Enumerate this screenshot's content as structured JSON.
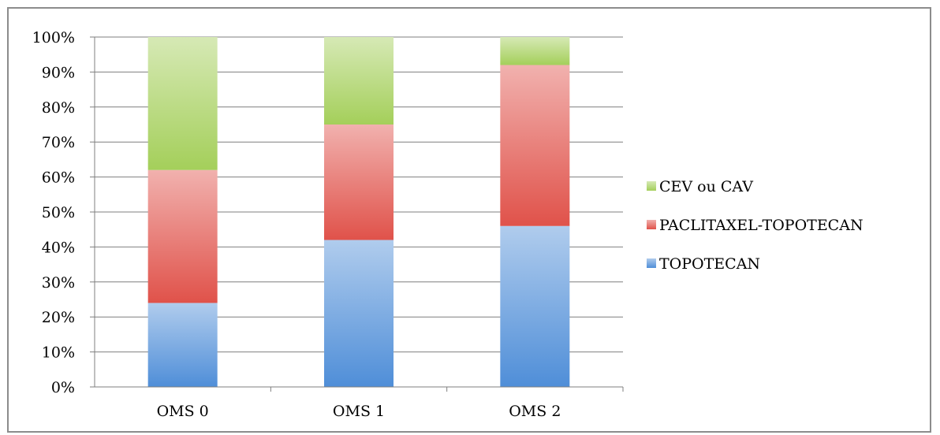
{
  "chart_data": {
    "type": "bar",
    "stacked": true,
    "normalized": true,
    "categories": [
      "OMS 0",
      "OMS 1",
      "OMS 2"
    ],
    "series": [
      {
        "name": "TOPOTECAN",
        "values": [
          24,
          42,
          46
        ],
        "color": "#4f8ed8"
      },
      {
        "name": "PACLITAXEL-TOPOTECAN",
        "values": [
          38,
          33,
          46
        ],
        "color": "#e0524a"
      },
      {
        "name": "CEV ou CAV",
        "values": [
          38,
          25,
          8
        ],
        "color": "#a4cf5a"
      }
    ],
    "title": "",
    "xlabel": "",
    "ylabel": "",
    "ylim": [
      0,
      100
    ],
    "y_ticks": [
      "0%",
      "10%",
      "20%",
      "30%",
      "40%",
      "50%",
      "60%",
      "70%",
      "80%",
      "90%",
      "100%"
    ],
    "grid": true,
    "legend_position": "right",
    "legend_order": [
      "CEV ou CAV",
      "PACLITAXEL-TOPOTECAN",
      "TOPOTECAN"
    ]
  }
}
